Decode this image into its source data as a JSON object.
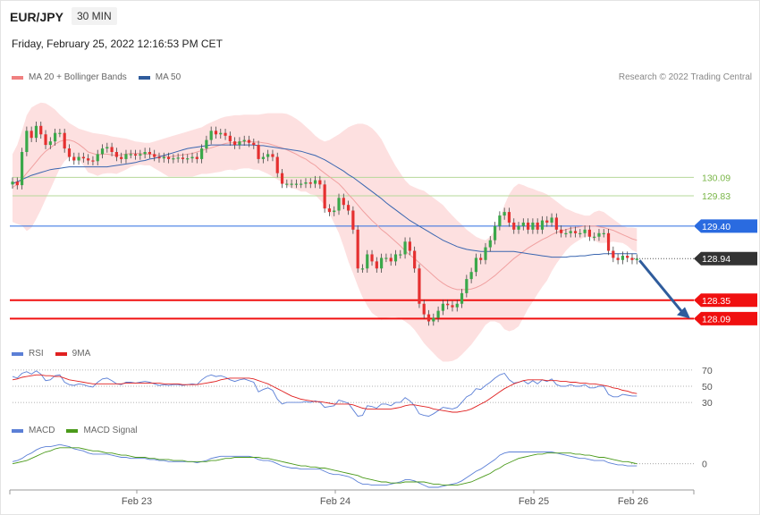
{
  "header": {
    "symbol": "EUR/JPY",
    "timeframe": "30 MIN",
    "timestamp": "Friday, February 25, 2022 12:16:53 PM CET",
    "credit": "Research © 2022 Trading Central"
  },
  "legends": {
    "price": [
      {
        "label": "MA 20 + Bollinger Bands",
        "color": "#f08080"
      },
      {
        "label": "MA 50",
        "color": "#2f5c9c"
      }
    ],
    "rsi": [
      {
        "label": "RSI",
        "color": "#5b7fd6"
      },
      {
        "label": "9MA",
        "color": "#e02020"
      }
    ],
    "macd": [
      {
        "label": "MACD",
        "color": "#5b7fd6"
      },
      {
        "label": "MACD Signal",
        "color": "#4a9a1a"
      }
    ]
  },
  "chart_data": {
    "type": "candlestick",
    "y_range": [
      127.6,
      131.4
    ],
    "x_labels": [
      "Feb 23",
      "Feb 24",
      "Feb 25",
      "Feb 26"
    ],
    "levels": [
      {
        "value": 130.09,
        "label": "130.09",
        "color": "#7ab648",
        "style": "thin"
      },
      {
        "value": 129.83,
        "label": "129.83",
        "color": "#7ab648",
        "style": "thin"
      },
      {
        "value": 129.4,
        "label": "129.40",
        "color": "#2a6be0",
        "style": "tag"
      },
      {
        "value": 128.94,
        "label": "128.94",
        "color": "#333333",
        "style": "current"
      },
      {
        "value": 128.35,
        "label": "128.35",
        "color": "#f01010",
        "style": "tag"
      },
      {
        "value": 128.09,
        "label": "128.09",
        "color": "#f01010",
        "style": "tag"
      }
    ],
    "close": [
      130.03,
      129.98,
      130.45,
      130.75,
      130.65,
      130.82,
      130.7,
      130.55,
      130.6,
      130.72,
      130.72,
      130.5,
      130.38,
      130.33,
      130.38,
      130.36,
      130.33,
      130.32,
      130.42,
      130.5,
      130.52,
      130.45,
      130.38,
      130.35,
      130.42,
      130.42,
      130.4,
      130.42,
      130.45,
      130.42,
      130.38,
      130.36,
      130.38,
      130.35,
      130.36,
      130.37,
      130.35,
      130.36,
      130.38,
      130.35,
      130.5,
      130.62,
      130.75,
      130.7,
      130.72,
      130.68,
      130.6,
      130.55,
      130.6,
      130.62,
      130.58,
      130.55,
      130.35,
      130.38,
      130.42,
      130.38,
      130.15,
      130.0,
      130.0,
      130.0,
      130.0,
      130.0,
      130.02,
      130.0,
      130.05,
      129.99,
      129.65,
      129.6,
      129.62,
      129.8,
      129.7,
      129.62,
      129.35,
      128.8,
      128.8,
      129.0,
      128.9,
      128.8,
      128.95,
      128.95,
      128.9,
      129.0,
      129.0,
      129.18,
      129.05,
      128.8,
      128.3,
      128.15,
      128.05,
      128.1,
      128.2,
      128.3,
      128.28,
      128.25,
      128.3,
      128.45,
      128.65,
      128.75,
      128.95,
      128.92,
      129.1,
      129.2,
      129.4,
      129.55,
      129.6,
      129.45,
      129.35,
      129.4,
      129.45,
      129.35,
      129.45,
      129.35,
      129.48,
      129.45,
      129.52,
      129.35,
      129.3,
      129.3,
      129.33,
      129.3,
      129.3,
      129.35,
      129.25,
      129.25,
      129.3,
      129.3,
      129.05,
      128.95,
      128.92,
      128.98,
      128.95,
      128.92,
      128.94
    ],
    "ma20": [
      129.95,
      129.99,
      130.07,
      130.15,
      130.23,
      130.31,
      130.39,
      130.46,
      130.51,
      130.56,
      130.6,
      130.62,
      130.62,
      130.6,
      130.56,
      130.51,
      130.45,
      130.43,
      130.41,
      130.42,
      130.42,
      130.41,
      130.4,
      130.41,
      130.42,
      130.43,
      130.43,
      130.43,
      130.42,
      130.42,
      130.41,
      130.4,
      130.39,
      130.38,
      130.39,
      130.4,
      130.41,
      130.42,
      130.43,
      130.45,
      130.47,
      130.49,
      130.51,
      130.53,
      130.55,
      130.57,
      130.58,
      130.58,
      130.59,
      130.6,
      130.6,
      130.59,
      130.59,
      130.58,
      130.57,
      130.55,
      130.53,
      130.51,
      130.48,
      130.45,
      130.42,
      130.38,
      130.35,
      130.3,
      130.26,
      130.2,
      130.15,
      130.1,
      130.05,
      130.0,
      129.93,
      129.85,
      129.78,
      129.7,
      129.62,
      129.55,
      129.48,
      129.42,
      129.35,
      129.3,
      129.24,
      129.18,
      129.12,
      129.05,
      128.99,
      128.94,
      128.88,
      128.82,
      128.76,
      128.7,
      128.64,
      128.59,
      128.55,
      128.52,
      128.5,
      128.5,
      128.5,
      128.51,
      128.53,
      128.56,
      128.6,
      128.65,
      128.7,
      128.76,
      128.82,
      128.88,
      128.94,
      128.99,
      129.04,
      129.09,
      129.13,
      129.17,
      129.21,
      129.24,
      129.28,
      129.31,
      129.33,
      129.35,
      129.37,
      129.38,
      129.39,
      129.4,
      129.4,
      129.4,
      129.39,
      129.38,
      129.36,
      129.34,
      129.31,
      129.28,
      129.25,
      129.22,
      129.2
    ],
    "upper": [
      130.42,
      130.55,
      130.75,
      130.97,
      131.08,
      131.12,
      131.15,
      131.14,
      131.1,
      131.05,
      130.98,
      130.92,
      130.86,
      130.82,
      130.78,
      130.76,
      130.74,
      130.72,
      130.71,
      130.7,
      130.69,
      130.67,
      130.66,
      130.65,
      130.64,
      130.62,
      130.6,
      130.59,
      130.58,
      130.58,
      130.6,
      130.62,
      130.64,
      130.66,
      130.68,
      130.7,
      130.72,
      130.74,
      130.76,
      130.78,
      130.8,
      130.84,
      130.87,
      130.9,
      130.93,
      130.95,
      130.96,
      130.97,
      130.97,
      130.98,
      130.98,
      130.98,
      130.98,
      130.99,
      131.0,
      131.0,
      131.0,
      131.0,
      130.99,
      130.96,
      130.92,
      130.87,
      130.81,
      130.75,
      130.68,
      130.63,
      130.6,
      130.62,
      130.66,
      130.7,
      130.75,
      130.8,
      130.83,
      130.85,
      130.85,
      130.83,
      130.79,
      130.72,
      130.63,
      130.5,
      130.37,
      130.25,
      130.15,
      130.05,
      129.98,
      129.95,
      129.92,
      129.9,
      129.85,
      129.8,
      129.75,
      129.7,
      129.62,
      129.55,
      129.48,
      129.42,
      129.35,
      129.3,
      129.25,
      129.22,
      129.2,
      129.25,
      129.35,
      129.5,
      129.7,
      129.85,
      129.95,
      130.0,
      129.98,
      129.95,
      129.93,
      129.9,
      129.88,
      129.85,
      129.8,
      129.75,
      129.7,
      129.65,
      129.62,
      129.59,
      129.57,
      129.55,
      129.55,
      129.6,
      129.62,
      129.6,
      129.55,
      129.5,
      129.45,
      129.4,
      129.38,
      129.38,
      129.37
    ],
    "lower": [
      129.46,
      129.43,
      129.41,
      129.33,
      129.38,
      129.5,
      129.63,
      129.78,
      129.92,
      130.07,
      130.22,
      130.32,
      130.38,
      130.38,
      130.34,
      130.26,
      130.16,
      130.14,
      130.11,
      130.14,
      130.15,
      130.15,
      130.14,
      130.17,
      130.2,
      130.24,
      130.26,
      130.27,
      130.26,
      130.26,
      130.22,
      130.18,
      130.14,
      130.1,
      130.1,
      130.1,
      130.1,
      130.1,
      130.1,
      130.12,
      130.14,
      130.14,
      130.15,
      130.16,
      130.17,
      130.19,
      130.2,
      130.19,
      130.21,
      130.22,
      130.22,
      130.2,
      130.2,
      130.17,
      130.14,
      130.1,
      130.06,
      130.02,
      129.97,
      129.94,
      129.92,
      129.89,
      129.89,
      129.85,
      129.84,
      129.77,
      129.7,
      129.58,
      129.44,
      129.3,
      129.11,
      128.9,
      128.73,
      128.55,
      128.39,
      128.27,
      128.17,
      128.12,
      128.07,
      128.1,
      128.11,
      128.11,
      128.09,
      128.05,
      128.0,
      127.93,
      127.84,
      127.74,
      127.67,
      127.6,
      127.53,
      127.48,
      127.48,
      127.49,
      127.52,
      127.58,
      127.65,
      127.72,
      127.81,
      127.9,
      128.0,
      128.05,
      128.05,
      128.02,
      127.94,
      127.91,
      127.93,
      127.98,
      128.1,
      128.23,
      128.33,
      128.44,
      128.54,
      128.63,
      128.76,
      128.87,
      128.96,
      129.05,
      129.12,
      129.17,
      129.21,
      129.25,
      129.25,
      129.2,
      129.16,
      129.16,
      129.17,
      129.18,
      129.17,
      129.16,
      129.12,
      129.06,
      129.03
    ],
    "ma50": [
      130.0,
      130.03,
      130.06,
      130.09,
      130.12,
      130.14,
      130.16,
      130.18,
      130.2,
      130.21,
      130.22,
      130.23,
      130.24,
      130.24,
      130.24,
      130.24,
      130.24,
      130.24,
      130.24,
      130.24,
      130.24,
      130.25,
      130.26,
      130.27,
      130.28,
      130.29,
      130.3,
      130.32,
      130.33,
      130.35,
      130.36,
      130.38,
      130.4,
      130.42,
      130.44,
      130.46,
      130.48,
      130.5,
      130.51,
      130.52,
      130.53,
      130.54,
      130.55,
      130.55,
      130.55,
      130.55,
      130.55,
      130.55,
      130.55,
      130.55,
      130.55,
      130.55,
      130.54,
      130.54,
      130.53,
      130.52,
      130.51,
      130.5,
      130.49,
      130.48,
      130.47,
      130.46,
      130.44,
      130.42,
      130.4,
      130.37,
      130.34,
      130.3,
      130.26,
      130.22,
      130.18,
      130.13,
      130.09,
      130.04,
      129.99,
      129.94,
      129.89,
      129.84,
      129.79,
      129.73,
      129.68,
      129.63,
      129.58,
      129.53,
      129.48,
      129.44,
      129.4,
      129.36,
      129.32,
      129.28,
      129.24,
      129.2,
      129.17,
      129.14,
      129.11,
      129.09,
      129.07,
      129.06,
      129.05,
      129.04,
      129.04,
      129.04,
      129.04,
      129.04,
      129.04,
      129.04,
      129.04,
      129.03,
      129.02,
      129.01,
      129.0,
      128.99,
      128.98,
      128.97,
      128.96,
      128.96,
      128.96,
      128.96,
      128.97,
      128.97,
      128.98,
      128.98,
      128.99,
      129.0,
      129.0,
      129.01,
      129.01,
      129.01,
      129.01,
      129.01,
      129.01,
      129.01,
      129.01
    ],
    "rsi": {
      "ticks": [
        70,
        50,
        30
      ],
      "range": [
        18,
        82
      ],
      "rsi": [
        62,
        60,
        66,
        68,
        65,
        69,
        65,
        57,
        58,
        63,
        64,
        55,
        52,
        51,
        53,
        52,
        50,
        49,
        55,
        59,
        60,
        57,
        53,
        52,
        55,
        55,
        54,
        55,
        56,
        55,
        53,
        51,
        52,
        51,
        52,
        52,
        51,
        52,
        53,
        52,
        58,
        62,
        64,
        62,
        63,
        61,
        58,
        56,
        58,
        59,
        57,
        55,
        43,
        46,
        48,
        45,
        34,
        28,
        30,
        30,
        30,
        30,
        31,
        30,
        32,
        30,
        24,
        25,
        26,
        33,
        31,
        29,
        21,
        13,
        14,
        26,
        25,
        23,
        28,
        28,
        26,
        30,
        30,
        36,
        32,
        26,
        16,
        14,
        13,
        16,
        20,
        24,
        23,
        22,
        24,
        30,
        37,
        40,
        47,
        46,
        51,
        55,
        60,
        64,
        66,
        58,
        54,
        55,
        57,
        53,
        57,
        53,
        58,
        56,
        59,
        52,
        50,
        50,
        52,
        50,
        50,
        52,
        48,
        48,
        50,
        50,
        40,
        37,
        37,
        40,
        39,
        38,
        38
      ],
      "ma9": [
        58,
        59,
        61,
        62,
        63,
        64,
        64,
        63,
        63,
        62,
        62,
        60,
        58,
        57,
        56,
        55,
        54,
        53,
        53,
        53,
        53,
        53,
        53,
        53,
        54,
        54,
        54,
        54,
        54,
        54,
        54,
        54,
        53,
        53,
        53,
        53,
        52,
        52,
        52,
        52,
        53,
        54,
        55,
        56,
        58,
        59,
        60,
        60,
        60,
        60,
        60,
        59,
        57,
        55,
        53,
        50,
        47,
        44,
        41,
        38,
        36,
        34,
        33,
        32,
        31,
        31,
        30,
        29,
        28,
        28,
        28,
        28,
        27,
        25,
        23,
        22,
        22,
        22,
        22,
        22,
        22,
        23,
        24,
        26,
        27,
        27,
        26,
        25,
        24,
        22,
        21,
        20,
        19,
        18,
        18,
        19,
        20,
        22,
        25,
        28,
        31,
        35,
        39,
        43,
        47,
        50,
        53,
        55,
        57,
        58,
        58,
        58,
        58,
        57,
        57,
        57,
        56,
        56,
        55,
        55,
        54,
        54,
        53,
        53,
        52,
        51,
        50,
        48,
        47,
        45,
        44,
        42,
        41
      ]
    },
    "macd": {
      "ticks": [
        0
      ],
      "range": [
        -0.22,
        0.24
      ],
      "macd": [
        0.02,
        0.03,
        0.05,
        0.08,
        0.1,
        0.13,
        0.15,
        0.16,
        0.16,
        0.17,
        0.18,
        0.17,
        0.16,
        0.14,
        0.13,
        0.12,
        0.1,
        0.09,
        0.09,
        0.09,
        0.09,
        0.08,
        0.07,
        0.06,
        0.06,
        0.05,
        0.05,
        0.05,
        0.05,
        0.04,
        0.04,
        0.03,
        0.03,
        0.02,
        0.02,
        0.02,
        0.02,
        0.02,
        0.02,
        0.01,
        0.02,
        0.03,
        0.05,
        0.06,
        0.07,
        0.07,
        0.07,
        0.07,
        0.07,
        0.07,
        0.07,
        0.06,
        0.04,
        0.03,
        0.03,
        0.02,
        0.0,
        -0.02,
        -0.03,
        -0.04,
        -0.04,
        -0.05,
        -0.05,
        -0.05,
        -0.05,
        -0.05,
        -0.07,
        -0.09,
        -0.1,
        -0.1,
        -0.11,
        -0.12,
        -0.14,
        -0.17,
        -0.19,
        -0.19,
        -0.2,
        -0.2,
        -0.2,
        -0.2,
        -0.19,
        -0.18,
        -0.17,
        -0.15,
        -0.15,
        -0.16,
        -0.18,
        -0.2,
        -0.22,
        -0.22,
        -0.22,
        -0.21,
        -0.2,
        -0.19,
        -0.18,
        -0.16,
        -0.13,
        -0.1,
        -0.07,
        -0.05,
        -0.02,
        0.01,
        0.04,
        0.08,
        0.1,
        0.11,
        0.11,
        0.11,
        0.11,
        0.11,
        0.11,
        0.11,
        0.11,
        0.11,
        0.11,
        0.1,
        0.09,
        0.08,
        0.07,
        0.06,
        0.05,
        0.05,
        0.04,
        0.03,
        0.03,
        0.03,
        0.01,
        0.0,
        -0.01,
        -0.01,
        -0.02,
        -0.02,
        -0.02
      ],
      "signal": [
        0.0,
        0.01,
        0.02,
        0.03,
        0.05,
        0.07,
        0.09,
        0.11,
        0.12,
        0.14,
        0.15,
        0.15,
        0.15,
        0.15,
        0.15,
        0.14,
        0.13,
        0.12,
        0.12,
        0.11,
        0.1,
        0.1,
        0.09,
        0.08,
        0.08,
        0.07,
        0.06,
        0.06,
        0.06,
        0.05,
        0.05,
        0.04,
        0.04,
        0.04,
        0.03,
        0.03,
        0.03,
        0.02,
        0.02,
        0.02,
        0.02,
        0.02,
        0.03,
        0.03,
        0.04,
        0.05,
        0.05,
        0.06,
        0.06,
        0.06,
        0.06,
        0.06,
        0.06,
        0.05,
        0.05,
        0.04,
        0.03,
        0.02,
        0.01,
        0.0,
        -0.01,
        -0.02,
        -0.02,
        -0.03,
        -0.03,
        -0.04,
        -0.04,
        -0.05,
        -0.06,
        -0.07,
        -0.08,
        -0.09,
        -0.1,
        -0.11,
        -0.13,
        -0.14,
        -0.15,
        -0.16,
        -0.17,
        -0.17,
        -0.18,
        -0.18,
        -0.18,
        -0.17,
        -0.17,
        -0.17,
        -0.17,
        -0.17,
        -0.18,
        -0.19,
        -0.19,
        -0.2,
        -0.2,
        -0.2,
        -0.2,
        -0.19,
        -0.18,
        -0.17,
        -0.15,
        -0.13,
        -0.11,
        -0.09,
        -0.06,
        -0.04,
        -0.01,
        0.01,
        0.03,
        0.05,
        0.06,
        0.07,
        0.08,
        0.09,
        0.09,
        0.1,
        0.1,
        0.1,
        0.1,
        0.1,
        0.1,
        0.09,
        0.09,
        0.08,
        0.08,
        0.07,
        0.06,
        0.06,
        0.05,
        0.04,
        0.03,
        0.02,
        0.02,
        0.01,
        0.0
      ]
    }
  },
  "colors": {
    "up_candle": "#3aa84a",
    "down_candle": "#e53030",
    "band_fill": "#fde0e0",
    "ma20": "#f0a0a0",
    "ma50": "#3a66b0",
    "forecast_arrow": "#2f5c9c"
  }
}
